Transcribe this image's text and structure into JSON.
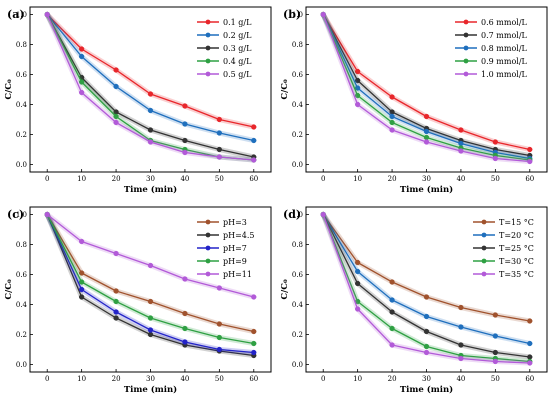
{
  "chart_data": [
    {
      "panel": "(a)",
      "type": "line",
      "xlabel": "Time (min)",
      "ylabel": "C/C₀",
      "x": [
        0,
        10,
        20,
        30,
        40,
        50,
        60
      ],
      "xlim": [
        -5,
        65
      ],
      "ylim": [
        -0.05,
        1.05
      ],
      "xticks": [
        0,
        10,
        20,
        30,
        40,
        50,
        60
      ],
      "yticks": [
        "0.0",
        "0.2",
        "0.4",
        "0.6",
        "0.8",
        "1.0"
      ],
      "legend": "top-right",
      "series": [
        {
          "name": "0.1 g/L",
          "color": "#e8262b",
          "values": [
            1.0,
            0.77,
            0.63,
            0.47,
            0.39,
            0.3,
            0.25
          ]
        },
        {
          "name": "0.2 g/L",
          "color": "#1f6fbd",
          "values": [
            1.0,
            0.72,
            0.52,
            0.36,
            0.27,
            0.21,
            0.16
          ]
        },
        {
          "name": "0.3 g/L",
          "color": "#333333",
          "values": [
            1.0,
            0.58,
            0.35,
            0.23,
            0.16,
            0.1,
            0.05
          ]
        },
        {
          "name": "0.4 g/L",
          "color": "#2fa043",
          "values": [
            1.0,
            0.55,
            0.32,
            0.16,
            0.1,
            0.05,
            0.03
          ]
        },
        {
          "name": "0.5 g/L",
          "color": "#b25ad8",
          "values": [
            1.0,
            0.48,
            0.28,
            0.15,
            0.08,
            0.05,
            0.03
          ]
        }
      ]
    },
    {
      "panel": "(b)",
      "type": "line",
      "xlabel": "Time (min)",
      "ylabel": "C/C₀",
      "x": [
        0,
        10,
        20,
        30,
        40,
        50,
        60
      ],
      "xlim": [
        -5,
        65
      ],
      "ylim": [
        -0.05,
        1.05
      ],
      "xticks": [
        0,
        10,
        20,
        30,
        40,
        50,
        60
      ],
      "yticks": [
        "0.0",
        "0.2",
        "0.4",
        "0.6",
        "0.8",
        "1.0"
      ],
      "legend": "top-right",
      "series": [
        {
          "name": "0.6 mmol/L",
          "color": "#e8262b",
          "values": [
            1.0,
            0.62,
            0.45,
            0.32,
            0.23,
            0.15,
            0.1
          ]
        },
        {
          "name": "0.7 mmol/L",
          "color": "#333333",
          "values": [
            1.0,
            0.56,
            0.35,
            0.24,
            0.16,
            0.1,
            0.06
          ]
        },
        {
          "name": "0.8 mmol/L",
          "color": "#1f6fbd",
          "values": [
            1.0,
            0.51,
            0.32,
            0.22,
            0.14,
            0.08,
            0.04
          ]
        },
        {
          "name": "0.9 mmol/L",
          "color": "#2fa043",
          "values": [
            1.0,
            0.46,
            0.28,
            0.18,
            0.11,
            0.06,
            0.03
          ]
        },
        {
          "name": "1.0 mmol/L",
          "color": "#b25ad8",
          "values": [
            1.0,
            0.4,
            0.23,
            0.15,
            0.09,
            0.04,
            0.02
          ]
        }
      ]
    },
    {
      "panel": "(c)",
      "type": "line",
      "xlabel": "Time (min)",
      "ylabel": "C/C₀",
      "x": [
        0,
        10,
        20,
        30,
        40,
        50,
        60
      ],
      "xlim": [
        -5,
        65
      ],
      "ylim": [
        -0.05,
        1.05
      ],
      "xticks": [
        0,
        10,
        20,
        30,
        40,
        50,
        60
      ],
      "yticks": [
        "0.0",
        "0.2",
        "0.4",
        "0.6",
        "0.8",
        "1.0"
      ],
      "legend": "top-right",
      "series": [
        {
          "name": "pH=3",
          "color": "#a0522d",
          "values": [
            1.0,
            0.61,
            0.49,
            0.42,
            0.34,
            0.27,
            0.22
          ]
        },
        {
          "name": "pH=4.5",
          "color": "#333333",
          "values": [
            1.0,
            0.45,
            0.31,
            0.2,
            0.13,
            0.09,
            0.06
          ]
        },
        {
          "name": "pH=7",
          "color": "#2323c8",
          "values": [
            1.0,
            0.5,
            0.35,
            0.23,
            0.15,
            0.1,
            0.08
          ]
        },
        {
          "name": "pH=9",
          "color": "#2fa043",
          "values": [
            1.0,
            0.55,
            0.42,
            0.31,
            0.24,
            0.18,
            0.14
          ]
        },
        {
          "name": "pH=11",
          "color": "#b25ad8",
          "values": [
            1.0,
            0.82,
            0.74,
            0.66,
            0.57,
            0.51,
            0.45
          ]
        }
      ]
    },
    {
      "panel": "(d)",
      "type": "line",
      "xlabel": "Time (min)",
      "ylabel": "C/C₀",
      "x": [
        0,
        10,
        20,
        30,
        40,
        50,
        60
      ],
      "xlim": [
        -5,
        65
      ],
      "ylim": [
        -0.05,
        1.05
      ],
      "xticks": [
        0,
        10,
        20,
        30,
        40,
        50,
        60
      ],
      "yticks": [
        "0.0",
        "0.2",
        "0.4",
        "0.6",
        "0.8",
        "1.0"
      ],
      "legend": "top-right",
      "series": [
        {
          "name": "T=15 °C",
          "color": "#a0522d",
          "values": [
            1.0,
            0.68,
            0.55,
            0.45,
            0.38,
            0.33,
            0.29
          ]
        },
        {
          "name": "T=20 °C",
          "color": "#1f6fbd",
          "values": [
            1.0,
            0.62,
            0.43,
            0.32,
            0.25,
            0.19,
            0.14
          ]
        },
        {
          "name": "T=25 °C",
          "color": "#333333",
          "values": [
            1.0,
            0.54,
            0.35,
            0.22,
            0.13,
            0.08,
            0.05
          ]
        },
        {
          "name": "T=30 °C",
          "color": "#2fa043",
          "values": [
            1.0,
            0.42,
            0.24,
            0.12,
            0.06,
            0.04,
            0.02
          ]
        },
        {
          "name": "T=35 °C",
          "color": "#b25ad8",
          "values": [
            1.0,
            0.37,
            0.13,
            0.08,
            0.04,
            0.02,
            0.01
          ]
        }
      ]
    }
  ]
}
